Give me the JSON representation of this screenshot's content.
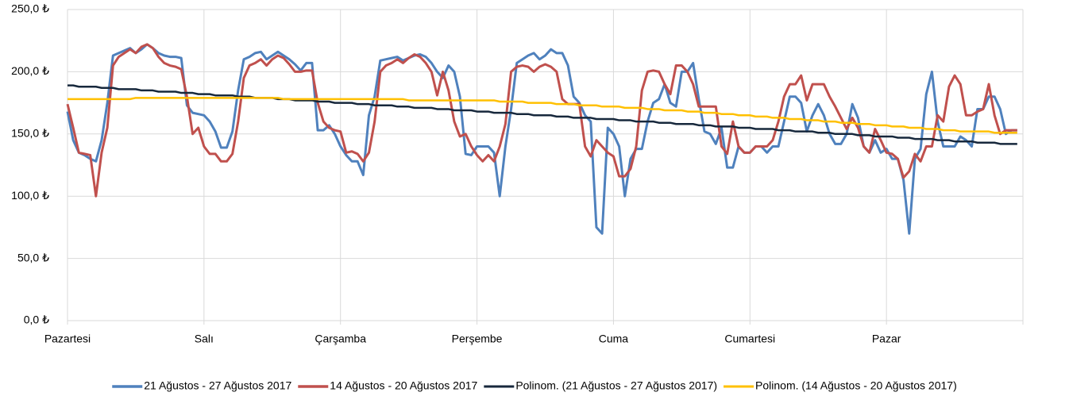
{
  "chart_data": {
    "type": "line",
    "categories": [
      "Pazartesi",
      null,
      null,
      null,
      null,
      null,
      null,
      null,
      null,
      null,
      null,
      null,
      null,
      null,
      null,
      null,
      null,
      null,
      null,
      null,
      null,
      null,
      null,
      null,
      "Salı",
      null,
      null,
      null,
      null,
      null,
      null,
      null,
      null,
      null,
      null,
      null,
      null,
      null,
      null,
      null,
      null,
      null,
      null,
      null,
      null,
      null,
      null,
      null,
      "Çarşamba",
      null,
      null,
      null,
      null,
      null,
      null,
      null,
      null,
      null,
      null,
      null,
      null,
      null,
      null,
      null,
      null,
      null,
      null,
      null,
      null,
      null,
      null,
      null,
      "Perşembe",
      null,
      null,
      null,
      null,
      null,
      null,
      null,
      null,
      null,
      null,
      null,
      null,
      null,
      null,
      null,
      null,
      null,
      null,
      null,
      null,
      null,
      null,
      null,
      "Cuma",
      null,
      null,
      null,
      null,
      null,
      null,
      null,
      null,
      null,
      null,
      null,
      null,
      null,
      null,
      null,
      null,
      null,
      null,
      null,
      null,
      null,
      null,
      null,
      "Cumartesi",
      null,
      null,
      null,
      null,
      null,
      null,
      null,
      null,
      null,
      null,
      null,
      null,
      null,
      null,
      null,
      null,
      null,
      null,
      null,
      null,
      null,
      null,
      null,
      "Pazar",
      null,
      null,
      null,
      null,
      null,
      null,
      null,
      null,
      null,
      null,
      null,
      null,
      null,
      null,
      null,
      null,
      null,
      null,
      null,
      null,
      null,
      null,
      null
    ],
    "series": [
      {
        "name": "21 Ağustos - 27 Ağustos 2017",
        "color": "#4f81bd",
        "width": 3,
        "values": [
          168,
          145,
          135,
          133,
          130,
          128,
          145,
          175,
          213,
          215,
          217,
          219,
          215,
          218,
          222,
          219,
          215,
          213,
          212,
          212,
          211,
          173,
          167,
          166,
          165,
          160,
          152,
          139,
          139,
          152,
          185,
          210,
          212,
          215,
          216,
          210,
          213,
          216,
          213,
          210,
          206,
          201,
          207,
          207,
          153,
          153,
          157,
          150,
          140,
          133,
          128,
          128,
          117,
          165,
          180,
          209,
          210,
          211,
          212,
          209,
          211,
          213,
          214,
          212,
          207,
          200,
          195,
          205,
          200,
          180,
          134,
          133,
          140,
          140,
          140,
          135,
          100,
          140,
          170,
          207,
          210,
          213,
          215,
          210,
          213,
          218,
          215,
          215,
          205,
          180,
          175,
          165,
          160,
          75,
          70,
          155,
          150,
          140,
          100,
          130,
          138,
          138,
          160,
          175,
          178,
          190,
          175,
          172,
          200,
          200,
          207,
          178,
          152,
          150,
          142,
          155,
          123,
          123,
          140,
          135,
          135,
          140,
          140,
          135,
          140,
          140,
          160,
          180,
          180,
          175,
          152,
          165,
          174,
          165,
          150,
          142,
          142,
          150,
          174,
          163,
          140,
          135,
          145,
          135,
          138,
          130,
          130,
          113,
          70,
          130,
          138,
          182,
          200,
          160,
          140,
          140,
          140,
          148,
          145,
          140,
          170,
          170,
          180,
          180,
          170,
          150,
          153,
          153
        ]
      },
      {
        "name": "14 Ağustos - 20 Ağustos 2017",
        "color": "#c0504d",
        "width": 3,
        "values": [
          174,
          155,
          135,
          134,
          133,
          100,
          135,
          155,
          205,
          212,
          215,
          218,
          215,
          220,
          222,
          219,
          212,
          207,
          205,
          204,
          202,
          180,
          150,
          155,
          140,
          134,
          134,
          128,
          128,
          134,
          160,
          195,
          205,
          207,
          210,
          205,
          210,
          213,
          211,
          206,
          200,
          200,
          201,
          201,
          175,
          160,
          155,
          153,
          152,
          135,
          136,
          134,
          128,
          135,
          160,
          200,
          205,
          207,
          210,
          207,
          211,
          214,
          212,
          207,
          200,
          181,
          200,
          185,
          160,
          148,
          150,
          140,
          133,
          128,
          133,
          128,
          140,
          158,
          200,
          204,
          205,
          204,
          200,
          204,
          206,
          204,
          200,
          178,
          174,
          174,
          174,
          140,
          132,
          145,
          140,
          135,
          132,
          116,
          116,
          122,
          140,
          185,
          200,
          201,
          200,
          190,
          182,
          205,
          205,
          200,
          190,
          172,
          172,
          172,
          172,
          140,
          134,
          160,
          140,
          135,
          135,
          140,
          140,
          140,
          145,
          160,
          180,
          190,
          190,
          197,
          177,
          190,
          190,
          190,
          180,
          172,
          163,
          154,
          163,
          155,
          140,
          135,
          154,
          145,
          135,
          134,
          130,
          115,
          120,
          134,
          128,
          140,
          140,
          165,
          160,
          188,
          197,
          190,
          165,
          165,
          168,
          170,
          190,
          165,
          150,
          153,
          153,
          153
        ]
      },
      {
        "name": "Polinom. (21 Ağustos - 27 Ağustos 2017)",
        "color": "#17283c",
        "width": 2.5,
        "values": [
          189,
          189,
          188,
          188,
          188,
          188,
          187,
          187,
          187,
          186,
          186,
          186,
          186,
          185,
          185,
          185,
          184,
          184,
          184,
          184,
          183,
          183,
          183,
          182,
          182,
          182,
          181,
          181,
          181,
          181,
          180,
          180,
          180,
          179,
          179,
          179,
          179,
          178,
          178,
          178,
          177,
          177,
          177,
          177,
          176,
          176,
          176,
          175,
          175,
          175,
          175,
          174,
          174,
          174,
          173,
          173,
          173,
          173,
          172,
          172,
          172,
          171,
          171,
          171,
          171,
          170,
          170,
          170,
          169,
          169,
          169,
          169,
          168,
          168,
          168,
          167,
          167,
          167,
          167,
          166,
          166,
          166,
          165,
          165,
          165,
          165,
          164,
          164,
          164,
          163,
          163,
          163,
          163,
          162,
          162,
          162,
          162,
          161,
          161,
          161,
          160,
          160,
          160,
          160,
          159,
          159,
          159,
          158,
          158,
          158,
          158,
          157,
          157,
          157,
          156,
          156,
          156,
          156,
          155,
          155,
          155,
          154,
          154,
          154,
          154,
          153,
          153,
          153,
          152,
          152,
          152,
          152,
          151,
          151,
          151,
          150,
          150,
          150,
          150,
          149,
          149,
          149,
          148,
          148,
          148,
          148,
          147,
          147,
          147,
          146,
          146,
          146,
          146,
          145,
          145,
          145,
          144,
          144,
          144,
          144,
          143,
          143,
          143,
          143,
          142,
          142,
          142,
          142
        ]
      },
      {
        "name": "Polinom. (14 Ağustos - 20 Ağustos 2017)",
        "color": "#ffc000",
        "width": 2.5,
        "values": [
          178,
          178,
          178,
          178,
          178,
          178,
          178,
          178,
          178,
          178,
          178,
          178,
          179,
          179,
          179,
          179,
          179,
          179,
          179,
          179,
          179,
          179,
          179,
          179,
          179,
          179,
          179,
          179,
          179,
          179,
          179,
          179,
          179,
          179,
          179,
          179,
          179,
          179,
          178,
          178,
          178,
          178,
          178,
          178,
          178,
          178,
          178,
          178,
          178,
          178,
          178,
          178,
          178,
          178,
          178,
          178,
          178,
          178,
          178,
          178,
          177,
          177,
          177,
          177,
          177,
          177,
          177,
          177,
          177,
          177,
          177,
          177,
          177,
          177,
          177,
          177,
          176,
          176,
          176,
          176,
          176,
          175,
          175,
          175,
          175,
          175,
          174,
          174,
          174,
          174,
          173,
          173,
          173,
          173,
          172,
          172,
          172,
          172,
          171,
          171,
          171,
          171,
          170,
          170,
          170,
          169,
          169,
          169,
          169,
          168,
          168,
          168,
          167,
          167,
          167,
          166,
          166,
          166,
          165,
          165,
          165,
          164,
          164,
          164,
          163,
          163,
          163,
          162,
          162,
          162,
          161,
          161,
          161,
          160,
          160,
          160,
          159,
          159,
          159,
          158,
          158,
          158,
          157,
          157,
          157,
          156,
          156,
          156,
          155,
          155,
          155,
          154,
          154,
          154,
          153,
          153,
          153,
          152,
          152,
          152,
          152,
          152,
          152,
          151,
          151,
          151,
          151,
          151
        ]
      }
    ],
    "ylim": [
      0,
      250
    ],
    "yticks": [
      {
        "value": 0,
        "label": "0,0 ₺"
      },
      {
        "value": 50,
        "label": "50,0 ₺"
      },
      {
        "value": 100,
        "label": "100,0 ₺"
      },
      {
        "value": 150,
        "label": "150,0 ₺"
      },
      {
        "value": 200,
        "label": "200,0 ₺"
      },
      {
        "value": 250,
        "label": "250,0 ₺"
      }
    ],
    "grid": true,
    "legend": "bottom"
  }
}
